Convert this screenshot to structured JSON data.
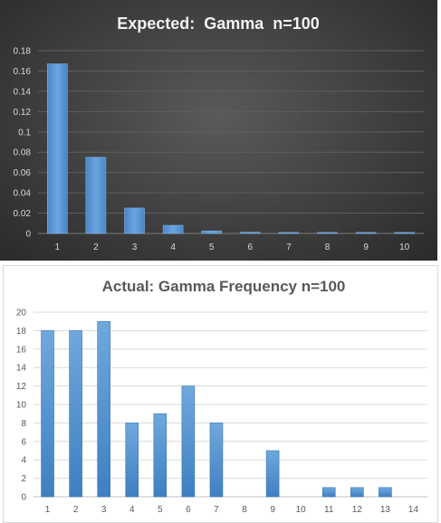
{
  "chart_data": [
    {
      "type": "bar",
      "title": "Expected:  Gamma  n=100",
      "categories": [
        "1",
        "2",
        "3",
        "4",
        "5",
        "6",
        "7",
        "8",
        "9",
        "10"
      ],
      "values": [
        0.167,
        0.075,
        0.025,
        0.008,
        0.0025,
        0.0012,
        0.001,
        0.001,
        0.001,
        0.001
      ],
      "yticks": [
        "0",
        "0.02",
        "0.04",
        "0.06",
        "0.08",
        "0.1",
        "0.12",
        "0.14",
        "0.16",
        "0.18"
      ],
      "ylim": [
        0,
        0.18
      ],
      "grid": true,
      "background": "#404040",
      "bar_color": "#5b9bd5"
    },
    {
      "type": "bar",
      "title": "Actual: Gamma Frequency n=100",
      "categories": [
        "1",
        "2",
        "3",
        "4",
        "5",
        "6",
        "7",
        "8",
        "9",
        "10",
        "11",
        "12",
        "13",
        "14"
      ],
      "values": [
        18,
        18,
        19,
        8,
        9,
        12,
        8,
        0,
        5,
        0,
        1,
        1,
        1,
        0
      ],
      "yticks": [
        "0",
        "2",
        "4",
        "6",
        "8",
        "10",
        "12",
        "14",
        "16",
        "18",
        "20"
      ],
      "ylim": [
        0,
        20
      ],
      "grid": true,
      "background": "#ffffff",
      "bar_color": "#5b9bd5"
    }
  ]
}
